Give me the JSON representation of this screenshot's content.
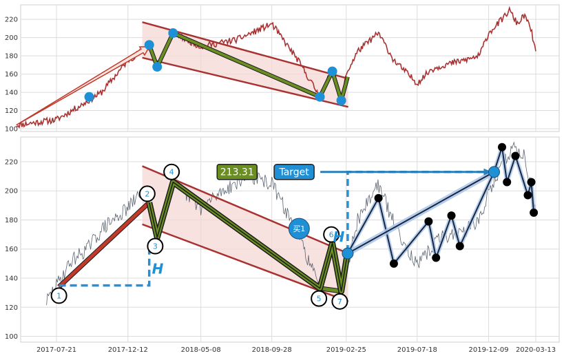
{
  "chart_data": [
    {
      "type": "line",
      "title": "",
      "ylim": [
        97,
        236
      ],
      "y_ticks": [
        100,
        120,
        140,
        160,
        180,
        200,
        220
      ],
      "grid": true,
      "colors": {
        "price": "#a83232",
        "channel": "#a83232",
        "channel_fill": "#f6d8d4",
        "pattern": "#6b8e23",
        "marker": "#1f8fd6",
        "arrow": "#c0392b"
      },
      "price_anchors": [
        [
          "2017-05-01",
          104
        ],
        [
          "2017-07-21",
          110
        ],
        [
          "2017-09-15",
          128
        ],
        [
          "2017-10-20",
          140
        ],
        [
          "2017-12-12",
          175
        ],
        [
          "2018-01-24",
          190
        ],
        [
          "2018-02-09",
          168
        ],
        [
          "2018-03-13",
          205
        ],
        [
          "2018-05-08",
          190
        ],
        [
          "2018-07-20",
          198
        ],
        [
          "2018-09-28",
          215
        ],
        [
          "2018-11-20",
          175
        ],
        [
          "2019-01-03",
          135
        ],
        [
          "2019-01-28",
          165
        ],
        [
          "2019-02-15",
          130
        ],
        [
          "2019-02-25",
          160
        ],
        [
          "2019-03-20",
          185
        ],
        [
          "2019-05-01",
          205
        ],
        [
          "2019-06-01",
          175
        ],
        [
          "2019-07-18",
          150
        ],
        [
          "2019-08-15",
          165
        ],
        [
          "2019-09-10",
          170
        ],
        [
          "2019-10-20",
          175
        ],
        [
          "2019-11-20",
          180
        ],
        [
          "2019-12-09",
          205
        ],
        [
          "2020-01-05",
          220
        ],
        [
          "2020-01-20",
          230
        ],
        [
          "2020-02-05",
          215
        ],
        [
          "2020-02-20",
          225
        ],
        [
          "2020-03-05",
          205
        ],
        [
          "2020-03-13",
          185
        ]
      ],
      "trend_arrow": [
        [
          "2017-05-01",
          104
        ],
        [
          "2018-01-24",
          190
        ]
      ],
      "channel_upper": [
        [
          "2018-01-10",
          217
        ],
        [
          "2019-03-01",
          155
        ]
      ],
      "channel_lower": [
        [
          "2018-01-10",
          178
        ],
        [
          "2019-03-01",
          124
        ]
      ],
      "pattern": [
        [
          "2018-01-24",
          192
        ],
        [
          "2018-02-09",
          168
        ],
        [
          "2018-03-13",
          205
        ],
        [
          "2019-01-03",
          135
        ],
        [
          "2019-01-28",
          163
        ],
        [
          "2019-02-15",
          131
        ],
        [
          "2019-02-28",
          157
        ]
      ],
      "markers": [
        [
          "2017-09-25",
          135
        ],
        [
          "2018-01-24",
          192
        ],
        [
          "2018-02-09",
          168
        ],
        [
          "2018-03-13",
          205
        ],
        [
          "2019-01-03",
          135
        ],
        [
          "2019-01-28",
          163
        ],
        [
          "2019-02-15",
          131
        ]
      ]
    },
    {
      "type": "line",
      "title": "",
      "ylim": [
        96,
        237
      ],
      "y_ticks": [
        100,
        120,
        140,
        160,
        180,
        200,
        220
      ],
      "x_ticks": [
        "2017-07-21",
        "2017-12-12",
        "2018-05-08",
        "2018-09-28",
        "2019-02-25",
        "2019-07-18",
        "2019-12-09",
        "2020-03-13"
      ],
      "grid": true,
      "colors": {
        "price": "#5a6270",
        "channel": "#a83232",
        "channel_fill": "#f6d8d4",
        "pattern": "#6b8e23",
        "projection": "#152742",
        "target_arrow": "#2980b9",
        "marker": "#1f8fd6"
      },
      "price_anchors": [
        [
          "2017-07-01",
          124
        ],
        [
          "2017-07-21",
          135
        ],
        [
          "2017-08-20",
          152
        ],
        [
          "2017-09-20",
          160
        ],
        [
          "2017-10-25",
          175
        ],
        [
          "2017-12-12",
          188
        ],
        [
          "2018-01-10",
          200
        ],
        [
          "2018-01-24",
          196
        ],
        [
          "2018-02-09",
          168
        ],
        [
          "2018-03-13",
          206
        ],
        [
          "2018-05-08",
          188
        ],
        [
          "2018-06-20",
          200
        ],
        [
          "2018-08-10",
          210
        ],
        [
          "2018-09-28",
          205
        ],
        [
          "2018-11-20",
          170
        ],
        [
          "2019-01-03",
          133
        ],
        [
          "2019-01-28",
          164
        ],
        [
          "2019-02-15",
          127
        ],
        [
          "2019-02-28",
          150
        ],
        [
          "2019-03-20",
          180
        ],
        [
          "2019-04-30",
          205
        ],
        [
          "2019-06-01",
          178
        ],
        [
          "2019-07-18",
          148
        ],
        [
          "2019-09-01",
          168
        ],
        [
          "2019-10-20",
          172
        ],
        [
          "2019-11-25",
          182
        ],
        [
          "2019-12-09",
          200
        ],
        [
          "2020-01-10",
          220
        ],
        [
          "2020-01-27",
          230
        ],
        [
          "2020-02-20",
          224
        ],
        [
          "2020-03-13",
          185
        ]
      ],
      "trend_line": [
        [
          "2017-07-26",
          134
        ],
        [
          "2018-01-24",
          192
        ]
      ],
      "channel_upper": [
        [
          "2018-01-10",
          217
        ],
        [
          "2019-03-01",
          157
        ]
      ],
      "channel_lower": [
        [
          "2018-01-10",
          177
        ],
        [
          "2019-03-01",
          124
        ]
      ],
      "pattern": [
        [
          "2018-01-24",
          192
        ],
        [
          "2018-02-09",
          168
        ],
        [
          "2018-03-13",
          206
        ],
        [
          "2019-01-03",
          133
        ],
        [
          "2019-01-28",
          164
        ],
        [
          "2019-02-15",
          131
        ],
        [
          "2019-02-28",
          158
        ]
      ],
      "pattern_ext": [
        [
          "2019-01-03",
          133
        ],
        [
          "2019-02-15",
          131
        ]
      ],
      "h_guide_1": [
        [
          "2017-07-26",
          135
        ],
        [
          "2018-01-24",
          135
        ],
        [
          "2018-01-24",
          165
        ]
      ],
      "h_guide_2": [
        [
          "2019-02-28",
          158
        ],
        [
          "2019-02-28",
          213
        ],
        [
          "2019-12-20",
          213
        ]
      ],
      "target_line": [
        [
          "2019-02-28",
          157
        ],
        [
          "2019-12-20",
          213
        ]
      ],
      "projection": [
        [
          "2019-02-28",
          157
        ],
        [
          "2019-05-01",
          195
        ],
        [
          "2019-06-01",
          150
        ],
        [
          "2019-08-10",
          179
        ],
        [
          "2019-08-25",
          154
        ],
        [
          "2019-09-25",
          183
        ],
        [
          "2019-10-12",
          162
        ],
        [
          "2019-12-20",
          213
        ],
        [
          "2020-01-05",
          230
        ],
        [
          "2020-01-15",
          206
        ],
        [
          "2020-02-01",
          224
        ],
        [
          "2020-02-26",
          197
        ],
        [
          "2020-03-04",
          206
        ],
        [
          "2020-03-09",
          185
        ]
      ],
      "dot_points": [
        [
          "2019-05-01",
          195
        ],
        [
          "2019-06-01",
          150
        ],
        [
          "2019-08-10",
          179
        ],
        [
          "2019-08-25",
          154
        ],
        [
          "2019-09-25",
          183
        ],
        [
          "2019-10-12",
          162
        ],
        [
          "2020-01-05",
          230
        ],
        [
          "2020-01-15",
          206
        ],
        [
          "2020-02-01",
          224
        ],
        [
          "2020-02-26",
          197
        ],
        [
          "2020-03-04",
          206
        ],
        [
          "2020-03-09",
          185
        ]
      ],
      "point_labels": [
        {
          "label": "1",
          "x": "2017-07-26",
          "y": 128,
          "value": 135
        },
        {
          "label": "2",
          "x": "2018-01-20",
          "y": 198,
          "value": 192
        },
        {
          "label": "3",
          "x": "2018-02-05",
          "y": 162,
          "value": 168
        },
        {
          "label": "4",
          "x": "2018-03-10",
          "y": 213,
          "value": 206
        },
        {
          "label": "5",
          "x": "2019-01-01",
          "y": 126,
          "value": 133
        },
        {
          "label": "6",
          "x": "2019-01-26",
          "y": 170,
          "value": 164
        },
        {
          "label": "7",
          "x": "2019-02-12",
          "y": 124,
          "value": 131
        }
      ],
      "h_labels": [
        {
          "text": "H",
          "x": "2018-02-10",
          "y": 143
        },
        {
          "text": "H",
          "x": "2019-02-10",
          "y": 165
        }
      ],
      "buy_marker": {
        "text": "买1",
        "x": "2018-11-22",
        "y": 174
      },
      "entry_marker": {
        "x": "2019-02-28",
        "y": 157
      },
      "target_marker": {
        "x": "2019-12-20",
        "y": 213
      },
      "value_box": {
        "text": "213.31",
        "x": "2018-07-20",
        "y": 213
      },
      "target_box": {
        "text": "Target",
        "x": "2018-11-12",
        "y": 213
      }
    }
  ]
}
